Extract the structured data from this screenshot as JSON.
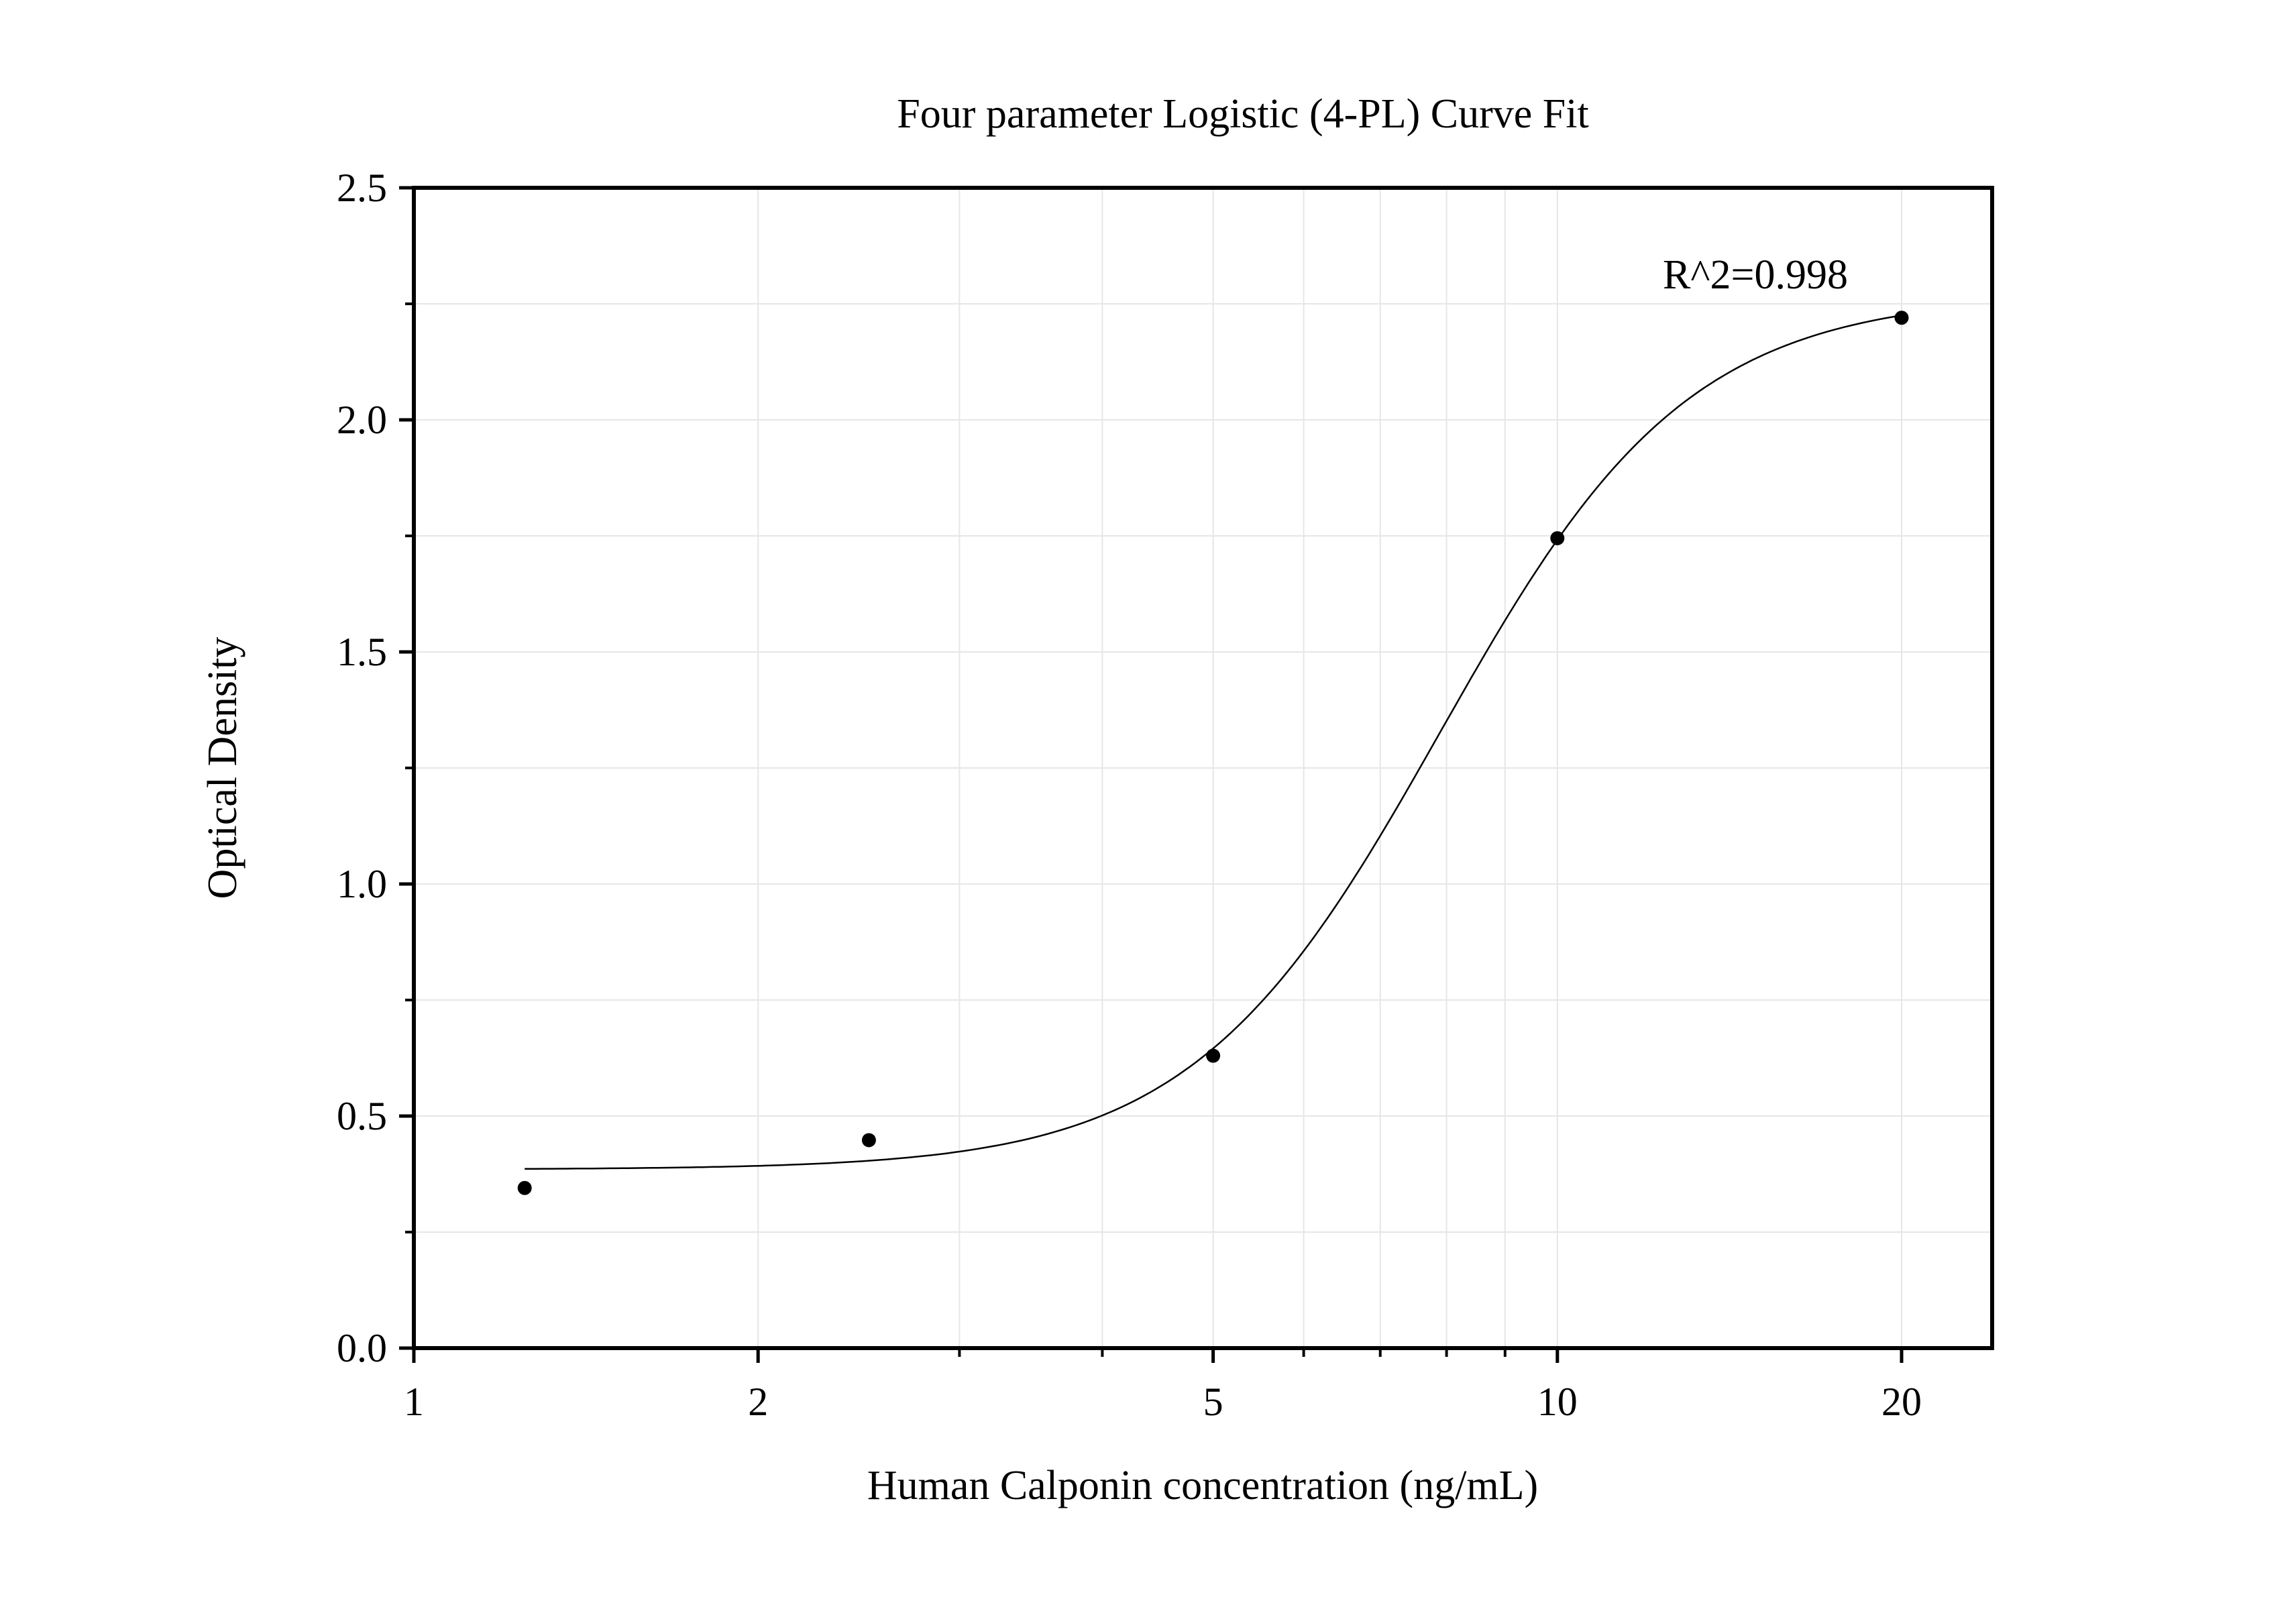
{
  "chart_data": {
    "type": "scatter",
    "title": "Four parameter Logistic (4-PL) Curve Fit",
    "xlabel": "Human Calponin concentration (ng/mL)",
    "ylabel": "Optical Density",
    "x_scale": "log",
    "xlim": [
      1,
      24
    ],
    "ylim": [
      0,
      2.5
    ],
    "x_ticks": [
      1,
      2,
      5,
      10,
      20
    ],
    "x_tick_labels": [
      "1",
      "2",
      "5",
      "10",
      "20"
    ],
    "x_minor_ticks": [
      3,
      4,
      6,
      7,
      8,
      9
    ],
    "y_ticks": [
      0,
      0.5,
      1.0,
      1.5,
      2.0,
      2.5
    ],
    "y_tick_labels": [
      "0.0",
      "0.5",
      "1.0",
      "1.5",
      "2.0",
      "2.5"
    ],
    "y_minor_ticks": [
      0.25,
      0.75,
      1.25,
      1.75,
      2.25
    ],
    "grid": true,
    "annotation": "R^2=0.998",
    "series": [
      {
        "kind": "points",
        "x": [
          1.25,
          2.5,
          5,
          10,
          20
        ],
        "y": [
          0.345,
          0.448,
          0.63,
          1.745,
          2.22
        ]
      },
      {
        "kind": "fit-curve",
        "model": "4PL",
        "x_range": [
          1.25,
          20
        ],
        "params": {
          "bottom": 0.385,
          "top": 2.27,
          "ec50": 7.9,
          "hill": 4.0
        }
      }
    ],
    "colors": {
      "points": "#000000",
      "curve": "#000000",
      "grid": "#e6e6e6",
      "axis": "#000000"
    }
  }
}
